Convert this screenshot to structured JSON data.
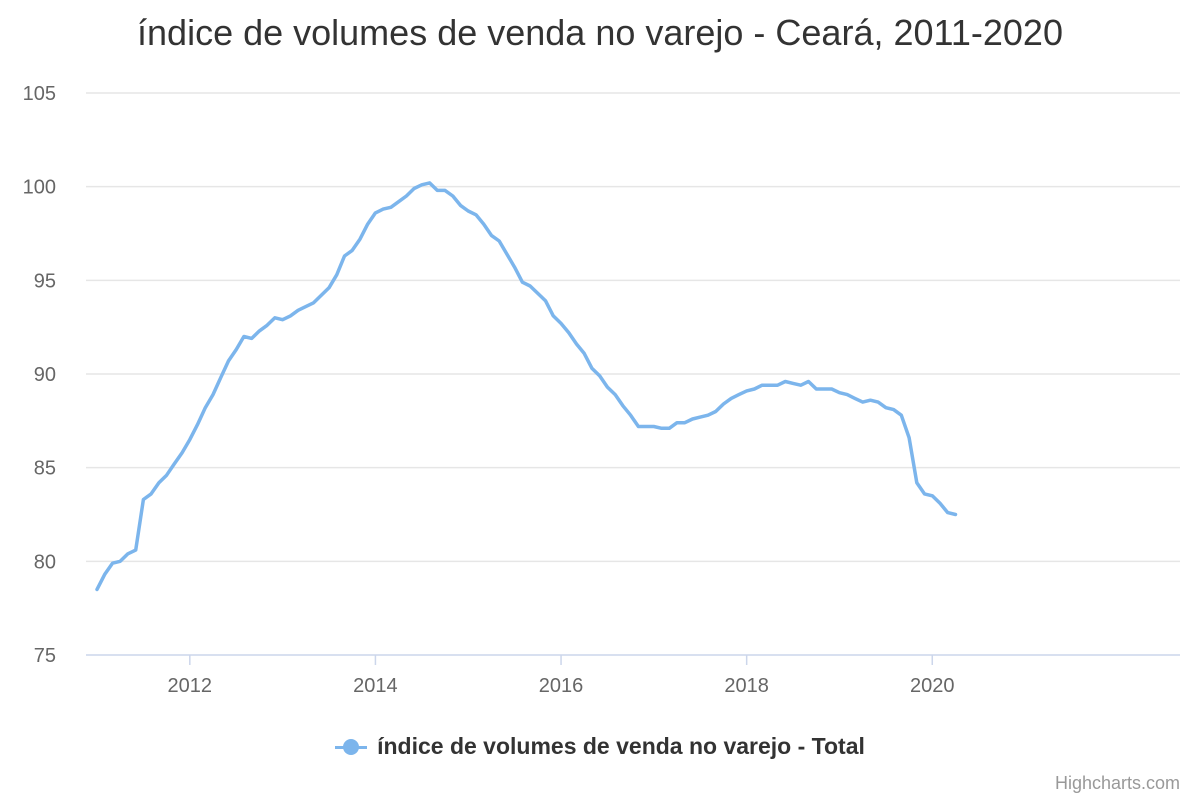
{
  "chart_data": {
    "type": "line",
    "title": "índice de volumes de venda no varejo - Ceará, 2011-2020",
    "xlabel": "",
    "ylabel": "",
    "ylim": [
      75,
      105
    ],
    "yticks": [
      75,
      80,
      85,
      90,
      95,
      100,
      105
    ],
    "xlim": [
      "2011-01",
      "2020-04"
    ],
    "xticks": [
      {
        "date": "2012-01",
        "label": "2012"
      },
      {
        "date": "2014-01",
        "label": "2014"
      },
      {
        "date": "2016-01",
        "label": "2016"
      },
      {
        "date": "2018-01",
        "label": "2018"
      },
      {
        "date": "2020-01",
        "label": "2020"
      }
    ],
    "grid": true,
    "legend": "bottom-center",
    "series": [
      {
        "name": "índice de volumes de venda no varejo - Total",
        "color": "#7cb5ec",
        "x": [
          "2011-01",
          "2011-02",
          "2011-03",
          "2011-04",
          "2011-05",
          "2011-06",
          "2011-07",
          "2011-08",
          "2011-09",
          "2011-10",
          "2011-11",
          "2011-12",
          "2012-01",
          "2012-02",
          "2012-03",
          "2012-04",
          "2012-05",
          "2012-06",
          "2012-07",
          "2012-08",
          "2012-09",
          "2012-10",
          "2012-11",
          "2012-12",
          "2013-01",
          "2013-02",
          "2013-03",
          "2013-04",
          "2013-05",
          "2013-06",
          "2013-07",
          "2013-08",
          "2013-09",
          "2013-10",
          "2013-11",
          "2013-12",
          "2014-01",
          "2014-02",
          "2014-03",
          "2014-04",
          "2014-05",
          "2014-06",
          "2014-07",
          "2014-08",
          "2014-09",
          "2014-10",
          "2014-11",
          "2014-12",
          "2015-01",
          "2015-02",
          "2015-03",
          "2015-04",
          "2015-05",
          "2015-06",
          "2015-07",
          "2015-08",
          "2015-09",
          "2015-10",
          "2015-11",
          "2015-12",
          "2016-01",
          "2016-02",
          "2016-03",
          "2016-04",
          "2016-05",
          "2016-06",
          "2016-07",
          "2016-08",
          "2016-09",
          "2016-10",
          "2016-11",
          "2016-12",
          "2017-01",
          "2017-02",
          "2017-03",
          "2017-04",
          "2017-05",
          "2017-06",
          "2017-07",
          "2017-08",
          "2017-09",
          "2017-10",
          "2017-11",
          "2017-12",
          "2018-01",
          "2018-02",
          "2018-03",
          "2018-04",
          "2018-05",
          "2018-06",
          "2018-07",
          "2018-08",
          "2018-09",
          "2018-10",
          "2018-11",
          "2018-12",
          "2019-01",
          "2019-02",
          "2019-03",
          "2019-04",
          "2019-05",
          "2019-06",
          "2019-07",
          "2019-08",
          "2019-09",
          "2019-10",
          "2019-11",
          "2019-12",
          "2020-01",
          "2020-02",
          "2020-03",
          "2020-04"
        ],
        "values": [
          78.5,
          79.3,
          79.9,
          80.0,
          80.4,
          80.6,
          83.3,
          83.6,
          84.2,
          84.6,
          85.2,
          85.8,
          86.5,
          87.3,
          88.2,
          88.9,
          89.8,
          90.7,
          91.3,
          92.0,
          91.9,
          92.3,
          92.6,
          93.0,
          92.9,
          93.1,
          93.4,
          93.6,
          93.8,
          94.2,
          94.6,
          95.3,
          96.3,
          96.6,
          97.2,
          98.0,
          98.6,
          98.8,
          98.9,
          99.2,
          99.5,
          99.9,
          100.1,
          100.2,
          99.8,
          99.8,
          99.5,
          99.0,
          98.7,
          98.5,
          98.0,
          97.4,
          97.1,
          96.4,
          95.7,
          94.9,
          94.7,
          94.3,
          93.9,
          93.1,
          92.7,
          92.2,
          91.6,
          91.1,
          90.3,
          89.9,
          89.3,
          88.9,
          88.3,
          87.8,
          87.2,
          87.2,
          87.2,
          87.1,
          87.1,
          87.4,
          87.4,
          87.6,
          87.7,
          87.8,
          88.0,
          88.4,
          88.7,
          88.9,
          89.1,
          89.2,
          89.4,
          89.4,
          89.4,
          89.6,
          89.5,
          89.4,
          89.6,
          89.2,
          89.2,
          89.2,
          89.0,
          88.9,
          88.7,
          88.5,
          88.6,
          88.5,
          88.2,
          88.1,
          87.8,
          86.6,
          84.2,
          83.6,
          83.5,
          83.1,
          82.6,
          82.5
        ]
      }
    ]
  },
  "credits": "Highcharts.com"
}
